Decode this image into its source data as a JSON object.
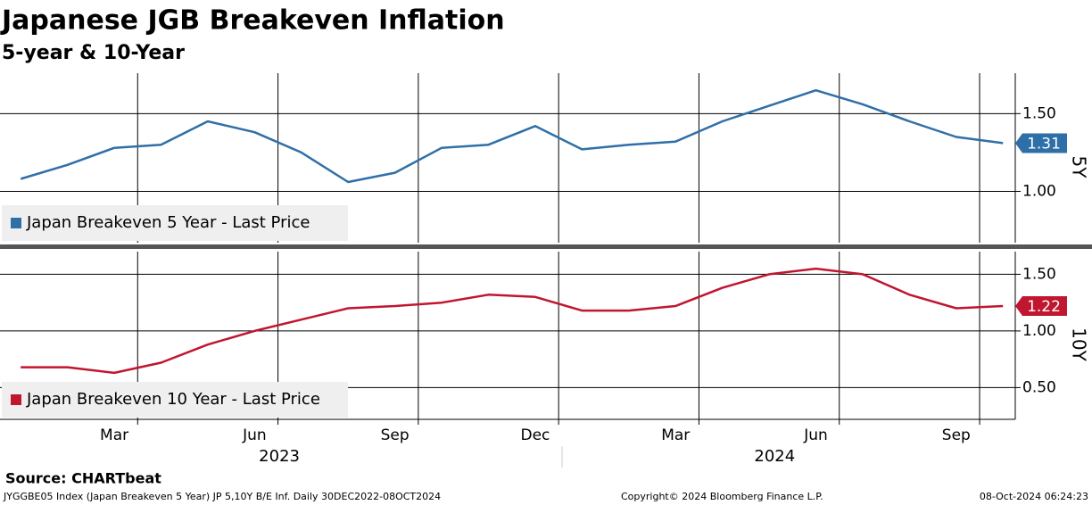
{
  "title": "Japanese JGB Breakeven Inflation",
  "subtitle": "5-year & 10-Year",
  "chart_data": [
    {
      "type": "line",
      "axis_label": "5Y",
      "x": [
        "2023-01",
        "2023-02",
        "2023-03",
        "2023-04",
        "2023-05",
        "2023-06",
        "2023-07",
        "2023-08",
        "2023-09",
        "2023-10",
        "2023-11",
        "2023-12",
        "2024-01",
        "2024-02",
        "2024-03",
        "2024-04",
        "2024-05",
        "2024-06",
        "2024-07",
        "2024-08",
        "2024-09",
        "2024-10"
      ],
      "series": [
        {
          "name": "Japan Breakeven 5 Year - Last Price",
          "color": "#2f6fa8",
          "values": [
            1.08,
            1.17,
            1.28,
            1.3,
            1.45,
            1.38,
            1.25,
            1.06,
            1.12,
            1.28,
            1.3,
            1.42,
            1.27,
            1.3,
            1.32,
            1.45,
            1.55,
            1.65,
            1.56,
            1.45,
            1.35,
            1.31
          ]
        }
      ],
      "last_value": 1.31,
      "ylim": [
        0.67,
        1.76
      ],
      "yticks": [
        {
          "value": 1,
          "label": "1.00"
        },
        {
          "value": 1.5,
          "label": "1.50"
        }
      ]
    },
    {
      "type": "line",
      "axis_label": "10Y",
      "x": [
        "2023-01",
        "2023-02",
        "2023-03",
        "2023-04",
        "2023-05",
        "2023-06",
        "2023-07",
        "2023-08",
        "2023-09",
        "2023-10",
        "2023-11",
        "2023-12",
        "2024-01",
        "2024-02",
        "2024-03",
        "2024-04",
        "2024-05",
        "2024-06",
        "2024-07",
        "2024-08",
        "2024-09",
        "2024-10"
      ],
      "series": [
        {
          "name": "Japan Breakeven 10 Year - Last Price",
          "color": "#c0162f",
          "values": [
            0.68,
            0.68,
            0.63,
            0.72,
            0.88,
            1.0,
            1.1,
            1.2,
            1.22,
            1.25,
            1.32,
            1.3,
            1.18,
            1.18,
            1.22,
            1.38,
            1.5,
            1.55,
            1.5,
            1.32,
            1.2,
            1.22
          ]
        }
      ],
      "last_value": 1.22,
      "ylim": [
        0.22,
        1.7
      ],
      "yticks": [
        {
          "value": 0.5,
          "label": "0.50"
        },
        {
          "value": 1,
          "label": "1.00"
        },
        {
          "value": 1.5,
          "label": "1.50"
        }
      ],
      "xticks": [
        {
          "value": "2023-03",
          "label": "Mar"
        },
        {
          "value": "2023-06",
          "label": "Jun"
        },
        {
          "value": "2023-09",
          "label": "Sep"
        },
        {
          "value": "2023-12",
          "label": "Dec"
        },
        {
          "value": "2024-03",
          "label": "Mar"
        },
        {
          "value": "2024-06",
          "label": "Jun"
        },
        {
          "value": "2024-09",
          "label": "Sep"
        }
      ],
      "years": [
        "2023",
        "2024"
      ]
    }
  ],
  "footer": {
    "source": "Source: CHARTbeat",
    "info": "JYGGBE05 Index (Japan Breakeven 5 Year) JP 5,10Y B/E Inf.  Daily 30DEC2022-08OCT2024",
    "copyright": "Copyright© 2024 Bloomberg Finance L.P.",
    "timestamp": "08-Oct-2024 06:24:23"
  }
}
